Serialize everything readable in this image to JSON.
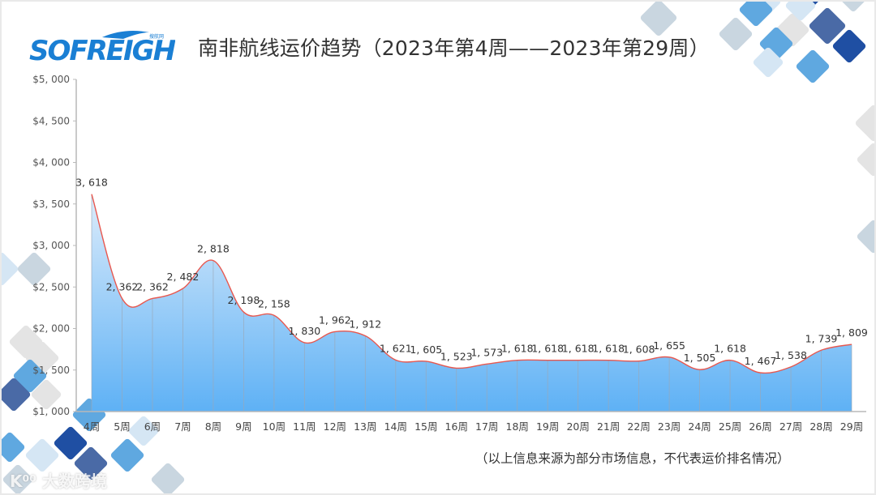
{
  "header": {
    "logo_text": "SOFREIGHT",
    "logo_subtext": "搜航网",
    "title": "南非航线运价趋势（2023年第4周——2023年第29周）"
  },
  "footer": {
    "note": "（以上信息来源为部分市场信息，不代表运价排名情况）",
    "watermark": "大数跨境"
  },
  "colors": {
    "line": "#e8584f",
    "area_top": "#dcecfb",
    "area_bottom": "#5eb1f5",
    "axis": "#b8b8b8",
    "logo_blue": "#1a7fd4"
  },
  "chart_data": {
    "type": "area",
    "title": "南非航线运价趋势（2023年第4周——2023年第29周）",
    "xlabel": "",
    "ylabel": "",
    "ylim": [
      1000,
      5000
    ],
    "yticks": [
      "$1,000",
      "$1,500",
      "$2,000",
      "$2,500",
      "$3,000",
      "$3,500",
      "$4,000",
      "$4,500",
      "$5,000"
    ],
    "ytick_values": [
      1000,
      1500,
      2000,
      2500,
      3000,
      3500,
      4000,
      4500,
      5000
    ],
    "categories": [
      "4周",
      "5周",
      "6周",
      "7周",
      "8周",
      "9周",
      "10周",
      "11周",
      "12周",
      "13周",
      "14周",
      "15周",
      "16周",
      "17周",
      "18周",
      "19周",
      "20周",
      "21周",
      "22周",
      "23周",
      "24周",
      "25周",
      "26周",
      "27周",
      "28周",
      "29周"
    ],
    "values": [
      3618,
      2362,
      2362,
      2482,
      2818,
      2198,
      2158,
      1830,
      1962,
      1912,
      1621,
      1605,
      1523,
      1573,
      1618,
      1618,
      1618,
      1618,
      1608,
      1655,
      1505,
      1618,
      1467,
      1538,
      1739,
      1809
    ],
    "value_labels": [
      "3, 618",
      "2, 362",
      "2, 362",
      "2, 482",
      "2, 818",
      "2, 198",
      "2, 158",
      "1, 830",
      "1, 962",
      "1, 912",
      "1, 621",
      "1, 605",
      "1, 523",
      "1, 573",
      "1, 618",
      "1, 618",
      "1, 618",
      "1, 618",
      "1, 608",
      "1, 655",
      "1, 505",
      "1, 618",
      "1, 467",
      "1, 538",
      "1, 739",
      "1, 809"
    ],
    "grid": false,
    "legend": "none",
    "smooth": true
  }
}
